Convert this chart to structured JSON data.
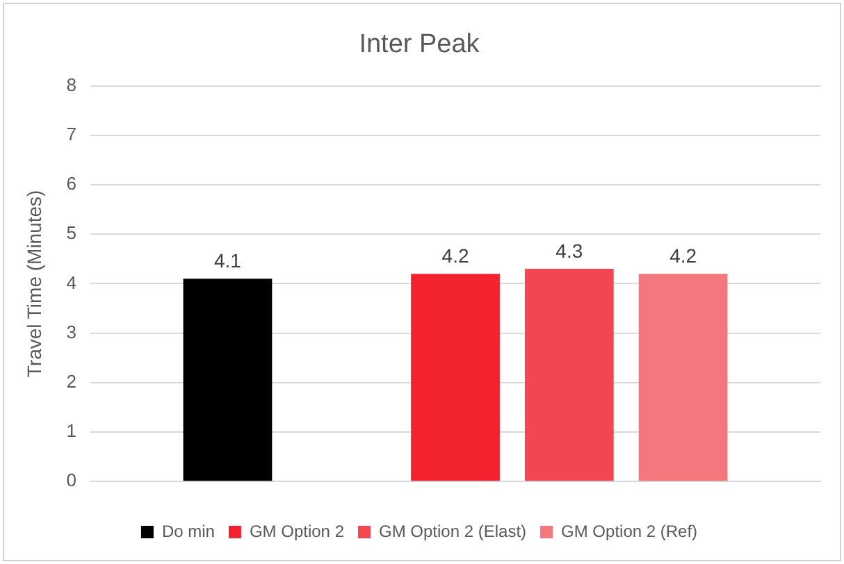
{
  "chart_data": {
    "type": "bar",
    "title": "Inter Peak",
    "ylabel": "Travel Time (Minutes)",
    "categories": [
      null
    ],
    "series": [
      {
        "name": "Do min",
        "color": "#000000",
        "values": [
          4.1
        ]
      },
      {
        "values": [
          null
        ]
      },
      {
        "name": "GM Option 2",
        "color": "#f2232e",
        "values": [
          4.2
        ]
      },
      {
        "name": "GM Option 2 (Elast)",
        "color": "#f24650",
        "values": [
          4.3
        ]
      },
      {
        "name": "GM Option 2 (Ref)",
        "color": "#f4777e",
        "values": [
          4.2
        ]
      }
    ],
    "ylim": [
      0,
      8
    ],
    "yticks": [
      0,
      1,
      2,
      3,
      4,
      5,
      6,
      7,
      8
    ],
    "grid": "y",
    "legend": "bottom",
    "data_labels": true
  }
}
